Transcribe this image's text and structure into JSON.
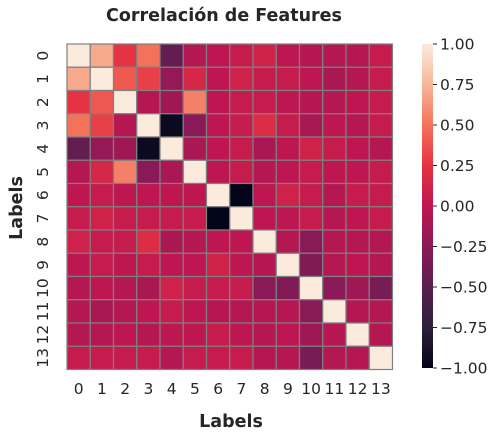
{
  "chart_data": {
    "type": "heatmap",
    "title": "Correlación de Features",
    "xlabel": "Labels",
    "ylabel": "Labels",
    "x_labels": [
      "0",
      "1",
      "2",
      "3",
      "4",
      "5",
      "6",
      "7",
      "8",
      "9",
      "10",
      "11",
      "12",
      "13"
    ],
    "y_labels": [
      "0",
      "1",
      "2",
      "3",
      "4",
      "5",
      "6",
      "7",
      "8",
      "9",
      "10",
      "11",
      "12",
      "13"
    ],
    "colorbar": {
      "range": [
        -1.0,
        1.0
      ],
      "ticks": [
        "1.00",
        "0.75",
        "0.50",
        "0.25",
        "0.00",
        "−0.25",
        "−0.50",
        "−0.75",
        "−1.00"
      ],
      "tick_values": [
        1.0,
        0.75,
        0.5,
        0.25,
        0.0,
        -0.25,
        -0.5,
        -0.75,
        -1.0
      ]
    },
    "grid": true,
    "gridline_color": "#808080",
    "values": [
      [
        1.0,
        0.7,
        0.25,
        0.5,
        -0.45,
        -0.05,
        0.0,
        0.05,
        0.1,
        0.0,
        -0.05,
        -0.05,
        -0.05,
        0.05
      ],
      [
        0.7,
        1.0,
        0.4,
        0.3,
        -0.2,
        0.15,
        0.0,
        0.1,
        0.05,
        0.05,
        0.0,
        -0.1,
        -0.05,
        0.05
      ],
      [
        0.25,
        0.4,
        1.0,
        -0.05,
        -0.15,
        0.55,
        0.0,
        0.05,
        0.05,
        0.0,
        -0.05,
        -0.05,
        0.0,
        0.05
      ],
      [
        0.5,
        0.3,
        -0.05,
        1.0,
        -0.95,
        -0.25,
        0.0,
        0.05,
        0.2,
        0.05,
        -0.1,
        0.0,
        -0.05,
        0.05
      ],
      [
        -0.45,
        -0.2,
        -0.15,
        -0.95,
        1.0,
        -0.1,
        0.0,
        0.05,
        -0.1,
        0.0,
        0.1,
        0.05,
        0.0,
        -0.05
      ],
      [
        -0.05,
        0.15,
        0.55,
        -0.25,
        -0.1,
        1.0,
        0.0,
        0.05,
        -0.05,
        0.0,
        0.05,
        0.0,
        0.0,
        0.05
      ],
      [
        0.0,
        0.05,
        0.0,
        0.0,
        0.0,
        0.0,
        1.0,
        -1.0,
        0.0,
        0.1,
        0.05,
        -0.05,
        0.05,
        0.05
      ],
      [
        0.05,
        0.1,
        0.05,
        0.05,
        0.05,
        0.05,
        -1.0,
        1.0,
        0.0,
        0.0,
        0.05,
        -0.05,
        0.0,
        0.05
      ],
      [
        0.1,
        0.05,
        0.05,
        0.2,
        -0.1,
        -0.05,
        0.0,
        0.0,
        1.0,
        -0.05,
        -0.25,
        -0.05,
        -0.05,
        -0.05
      ],
      [
        0.0,
        0.05,
        0.0,
        0.05,
        0.0,
        0.0,
        0.1,
        0.0,
        -0.05,
        1.0,
        -0.3,
        -0.05,
        0.0,
        -0.05
      ],
      [
        -0.05,
        0.0,
        -0.05,
        -0.1,
        0.1,
        0.05,
        0.05,
        0.05,
        -0.25,
        -0.3,
        1.0,
        -0.25,
        -0.15,
        -0.35
      ],
      [
        -0.05,
        -0.1,
        -0.05,
        0.0,
        0.05,
        0.0,
        -0.05,
        -0.05,
        -0.05,
        -0.05,
        -0.25,
        1.0,
        -0.05,
        -0.05
      ],
      [
        -0.05,
        -0.05,
        0.0,
        -0.05,
        0.0,
        0.0,
        0.05,
        0.0,
        -0.05,
        0.0,
        -0.15,
        -0.05,
        1.0,
        -0.05
      ],
      [
        0.05,
        0.05,
        0.05,
        0.05,
        -0.05,
        0.05,
        0.05,
        0.05,
        -0.05,
        -0.05,
        -0.35,
        -0.05,
        -0.05,
        1.0
      ]
    ]
  }
}
